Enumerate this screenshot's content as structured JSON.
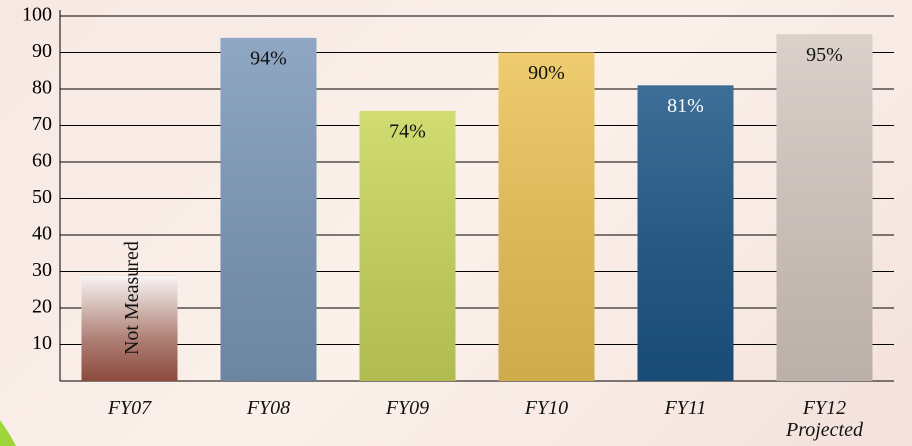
{
  "chart_data": {
    "type": "bar",
    "categories": [
      "FY07",
      "FY08",
      "FY09",
      "FY10",
      "FY11",
      "FY12 Projected"
    ],
    "values": [
      29,
      94,
      74,
      90,
      81,
      95
    ],
    "value_labels": [
      "Not Measured",
      "94%",
      "74%",
      "90%",
      "81%",
      "95%"
    ],
    "colors": [
      "#8c4a3c",
      "#7b98b8",
      "#c9d65a",
      "#ebc356",
      "#1b5585",
      "#d6c8c2"
    ],
    "ylim": [
      0,
      100
    ],
    "yticks": [
      10,
      20,
      30,
      40,
      50,
      60,
      70,
      80,
      90,
      100
    ],
    "grid": true
  }
}
